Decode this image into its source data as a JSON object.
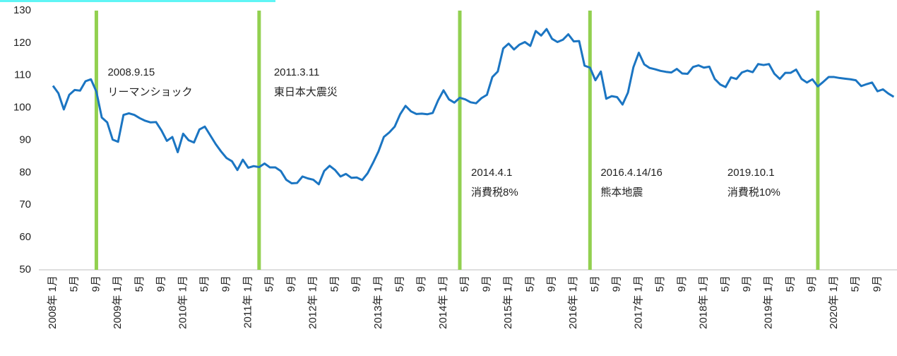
{
  "chart_data": {
    "type": "line",
    "categories": [
      "2008年 1月",
      null,
      null,
      null,
      "5月",
      null,
      null,
      null,
      "9月",
      null,
      null,
      null,
      "2009年 1月",
      null,
      null,
      null,
      "5月",
      null,
      null,
      null,
      "9月",
      null,
      null,
      null,
      "2010年 1月",
      null,
      null,
      null,
      "5月",
      null,
      null,
      null,
      "9月",
      null,
      null,
      null,
      "2011年 1月",
      null,
      null,
      null,
      "5月",
      null,
      null,
      null,
      "9月",
      null,
      null,
      null,
      "2012年 1月",
      null,
      null,
      null,
      "5月",
      null,
      null,
      null,
      "9月",
      null,
      null,
      null,
      "2013年 1月",
      null,
      null,
      null,
      "5月",
      null,
      null,
      null,
      "9月",
      null,
      null,
      null,
      "2014年 1月",
      null,
      null,
      null,
      "5月",
      null,
      null,
      null,
      "9月",
      null,
      null,
      null,
      "2015年 1月",
      null,
      null,
      null,
      "5月",
      null,
      null,
      null,
      "9月",
      null,
      null,
      null,
      "2016年 1月",
      null,
      null,
      null,
      "5月",
      null,
      null,
      null,
      "9月",
      null,
      null,
      null,
      "2017年 1月",
      null,
      null,
      null,
      "5月",
      null,
      null,
      null,
      "9月",
      null,
      null,
      null,
      "2018年 1月",
      null,
      null,
      null,
      "5月",
      null,
      null,
      null,
      "9月",
      null,
      null,
      null,
      "2019年 1月",
      null,
      null,
      null,
      "5月",
      null,
      null,
      null,
      "9月",
      null,
      null,
      null,
      "2020年 1月",
      null,
      null,
      null,
      "5月",
      null,
      null,
      null,
      "9月",
      null,
      null,
      null
    ],
    "values": [
      106.8,
      104.5,
      99.5,
      104,
      105.5,
      105.3,
      108.2,
      108.8,
      105,
      97,
      95.5,
      90.2,
      89.5,
      97.8,
      98.3,
      97.8,
      96.8,
      96,
      95.5,
      95.6,
      93,
      89.8,
      91,
      86.3,
      92,
      90,
      89.3,
      93.3,
      94.2,
      91.5,
      88.8,
      86.5,
      84.5,
      83.5,
      80.8,
      84,
      81.5,
      82,
      81.7,
      82.8,
      81.6,
      81.6,
      80.5,
      77.8,
      76.7,
      76.8,
      78.8,
      78.2,
      77.8,
      76.4,
      80.5,
      82.1,
      80.8,
      78.8,
      79.6,
      78.4,
      78.5,
      77.7,
      79.8,
      83,
      86.5,
      91,
      92.4,
      94.2,
      98,
      100.6,
      98.9,
      98.1,
      98.2,
      98,
      98.4,
      102.3,
      105.4,
      102.6,
      101.6,
      103.1,
      102.6,
      101.7,
      101.4,
      103,
      104,
      109.5,
      111.2,
      118.3,
      119.8,
      118,
      119.5,
      120.3,
      119.1,
      123.7,
      122.3,
      124.3,
      121.3,
      120.3,
      121,
      122.7,
      120.5,
      120.6,
      113,
      112.4,
      108.5,
      111.2,
      102.8,
      103.6,
      103.3,
      101,
      104.7,
      112.5,
      117,
      113.4,
      112.3,
      111.9,
      111.4,
      111.1,
      110.9,
      112,
      110.6,
      110.5,
      112.6,
      113.1,
      112.4,
      112.7,
      108.9,
      107.2,
      106.4,
      109.4,
      108.9,
      110.9,
      111.5,
      111,
      113.5,
      113.2,
      113.5,
      110.5,
      108.9,
      110.8,
      110.8,
      111.8,
      108.9,
      107.8,
      108.8,
      106.6,
      108,
      109.5,
      109.5,
      109.2,
      109,
      108.8,
      108.5,
      106.7,
      107.3,
      107.8,
      105.1,
      105.7,
      104.4,
      103.4
    ],
    "color": "#1b75c2",
    "ylim": [
      50,
      130
    ],
    "yticks": [
      50,
      60,
      70,
      80,
      90,
      100,
      110,
      120,
      130
    ],
    "grid": false,
    "event_color": "#92d050",
    "annotations": [
      {
        "x": 8,
        "label": [
          "2008.9.15",
          "リーマンショック"
        ]
      },
      {
        "x": 38,
        "label": [
          "2011.3.11",
          "東日本大震災"
        ]
      },
      {
        "x": 75,
        "label": [
          "2014.4.1",
          "消費税8%"
        ]
      },
      {
        "x": 99,
        "label": [
          "2016.4.14/16",
          "熊本地震"
        ]
      },
      {
        "x": 141,
        "label": [
          "2019.10.1",
          "消費税10%"
        ]
      }
    ]
  }
}
